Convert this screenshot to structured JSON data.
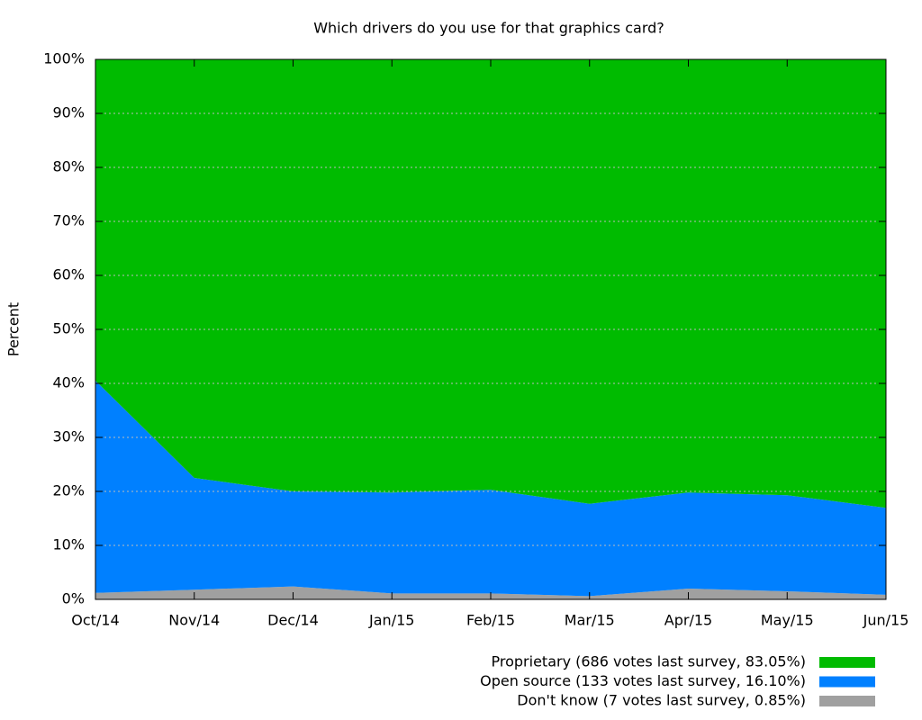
{
  "chart_data": {
    "type": "stacked-area",
    "title": "Which drivers do you use for that graphics card?",
    "y_label": "Percent",
    "categories": [
      "Oct/14",
      "Nov/14",
      "Dec/14",
      "Jan/15",
      "Feb/15",
      "Mar/15",
      "Apr/15",
      "May/15",
      "Jun/15"
    ],
    "series": [
      {
        "name": "Proprietary (686 votes last survey, 83.05%)",
        "color": "#00bb00",
        "values": [
          59.5,
          77.5,
          80.0,
          80.2,
          79.7,
          82.3,
          80.2,
          80.7,
          83.05
        ]
      },
      {
        "name": "Open source (133 votes last survey, 16.10%)",
        "color": "#0080ff",
        "values": [
          39.3,
          20.7,
          17.6,
          18.7,
          19.2,
          17.1,
          17.8,
          17.8,
          16.1
        ]
      },
      {
        "name": "Don't know (7 votes last survey, 0.85%)",
        "color": "#a0a0a0",
        "values": [
          1.2,
          1.8,
          2.4,
          1.1,
          1.1,
          0.6,
          2.0,
          1.5,
          0.85
        ]
      }
    ],
    "ylim": [
      0,
      100
    ],
    "yticks": [
      {
        "value": 0,
        "label": "0%"
      },
      {
        "value": 10,
        "label": "10%"
      },
      {
        "value": 20,
        "label": "20%"
      },
      {
        "value": 30,
        "label": "30%"
      },
      {
        "value": 40,
        "label": "40%"
      },
      {
        "value": 50,
        "label": "50%"
      },
      {
        "value": 60,
        "label": "60%"
      },
      {
        "value": 70,
        "label": "70%"
      },
      {
        "value": 80,
        "label": "80%"
      },
      {
        "value": 90,
        "label": "90%"
      },
      {
        "value": 100,
        "label": "100%"
      }
    ],
    "grid": true,
    "legend": "bottom-right"
  }
}
